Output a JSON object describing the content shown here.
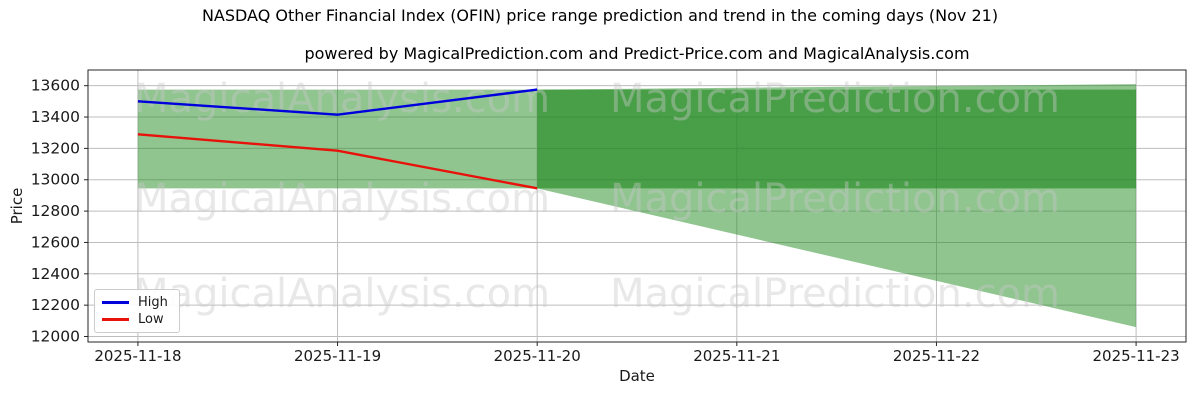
{
  "title": "NASDAQ Other Financial Index (OFIN) price range prediction and trend in the coming days (Nov 21)",
  "subtitle": "powered by MagicalPrediction.com and Predict-Price.com and MagicalAnalysis.com",
  "watermarks": [
    "MagicalAnalysis.com",
    "MagicalPrediction.com"
  ],
  "chart_data": {
    "type": "line",
    "title": "NASDAQ Other Financial Index (OFIN) price range prediction and trend in the coming days (Nov 21)",
    "xlabel": "Date",
    "ylabel": "Price",
    "categories": [
      "2025-11-18",
      "2025-11-19",
      "2025-11-20",
      "2025-11-21",
      "2025-11-22",
      "2025-11-23"
    ],
    "y_ticks": [
      12000,
      12200,
      12400,
      12600,
      12800,
      13000,
      13200,
      13400,
      13600
    ],
    "ylim": [
      11965,
      13700
    ],
    "grid": true,
    "series": [
      {
        "name": "High",
        "color": "#0000dd",
        "x": [
          0,
          1,
          2
        ],
        "values": [
          13500,
          13415,
          13575
        ]
      },
      {
        "name": "Low",
        "color": "#e8120b",
        "x": [
          0,
          1,
          2
        ],
        "values": [
          13290,
          13185,
          12945
        ]
      }
    ],
    "bands": [
      {
        "name": "observed-range-band",
        "x": [
          0,
          2
        ],
        "top": [
          13575,
          13575
        ],
        "bottom": [
          12945,
          12945
        ],
        "style": "light"
      },
      {
        "name": "forecast-cone-band",
        "x": [
          2,
          5
        ],
        "top": [
          13575,
          13610
        ],
        "bottom": [
          12945,
          12060
        ],
        "style": "light"
      },
      {
        "name": "forecast-core-band",
        "x": [
          2,
          5
        ],
        "top": [
          13575,
          13575
        ],
        "bottom": [
          12945,
          12945
        ],
        "style": "dark"
      }
    ],
    "band_colors": {
      "base": "#228B22",
      "light_alpha": 0.5,
      "dark_alpha": 0.65
    },
    "legend": {
      "position": "lower-left",
      "entries": [
        {
          "label": "High",
          "color": "#0000dd"
        },
        {
          "label": "Low",
          "color": "#e8120b"
        }
      ]
    }
  }
}
